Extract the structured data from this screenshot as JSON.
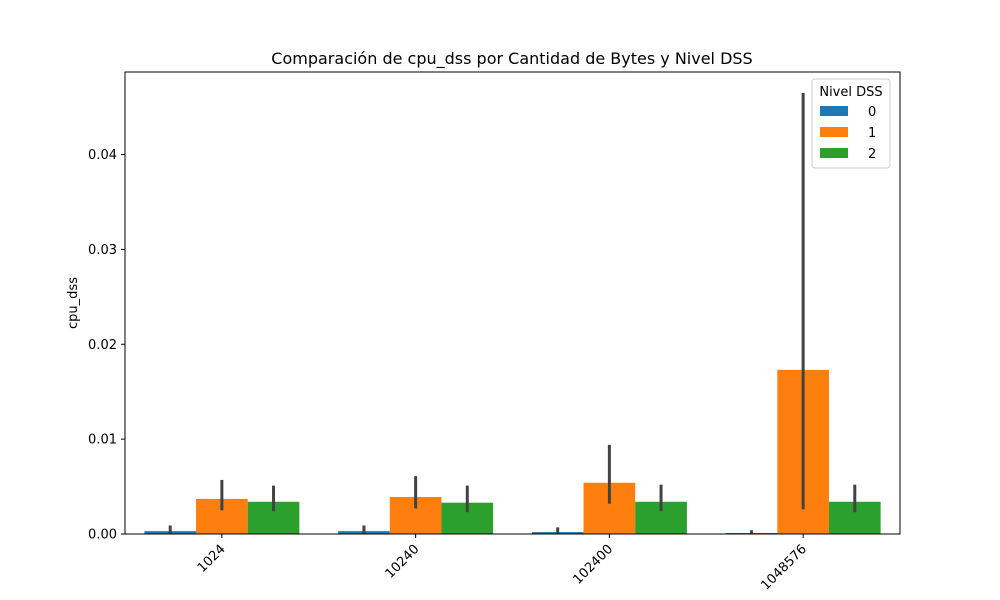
{
  "chart_data": {
    "type": "bar",
    "title": "Comparación de cpu_dss por Cantidad de Bytes y Nivel DSS",
    "xlabel": "",
    "ylabel": "cpu_dss",
    "ylim": [
      0,
      0.0487
    ],
    "yticks": [
      0.0,
      0.01,
      0.02,
      0.03,
      0.04
    ],
    "ytick_labels": [
      "0.00",
      "0.01",
      "0.02",
      "0.03",
      "0.04"
    ],
    "categories": [
      "1024",
      "10240",
      "102400",
      "1048576"
    ],
    "grid": false,
    "legend": {
      "title": "Nivel DSS",
      "placement": "top-right"
    },
    "series": [
      {
        "name": "0",
        "color": "#1f77b4",
        "values": [
          0.0003,
          0.0003,
          0.0002,
          0.0001
        ],
        "err_low": [
          0.0,
          0.0,
          0.0,
          0.0
        ],
        "err_high": [
          0.0009,
          0.0009,
          0.0007,
          0.0004
        ]
      },
      {
        "name": "1",
        "color": "#ff7f0e",
        "values": [
          0.0037,
          0.0039,
          0.0054,
          0.0173
        ],
        "err_low": [
          0.0025,
          0.0027,
          0.0032,
          0.0026
        ],
        "err_high": [
          0.0057,
          0.0061,
          0.0094,
          0.0465
        ]
      },
      {
        "name": "2",
        "color": "#2ca02c",
        "values": [
          0.0034,
          0.0033,
          0.0034,
          0.0034
        ],
        "err_low": [
          0.0024,
          0.0023,
          0.0024,
          0.0023
        ],
        "err_high": [
          0.0051,
          0.0051,
          0.0052,
          0.0052
        ]
      }
    ]
  }
}
